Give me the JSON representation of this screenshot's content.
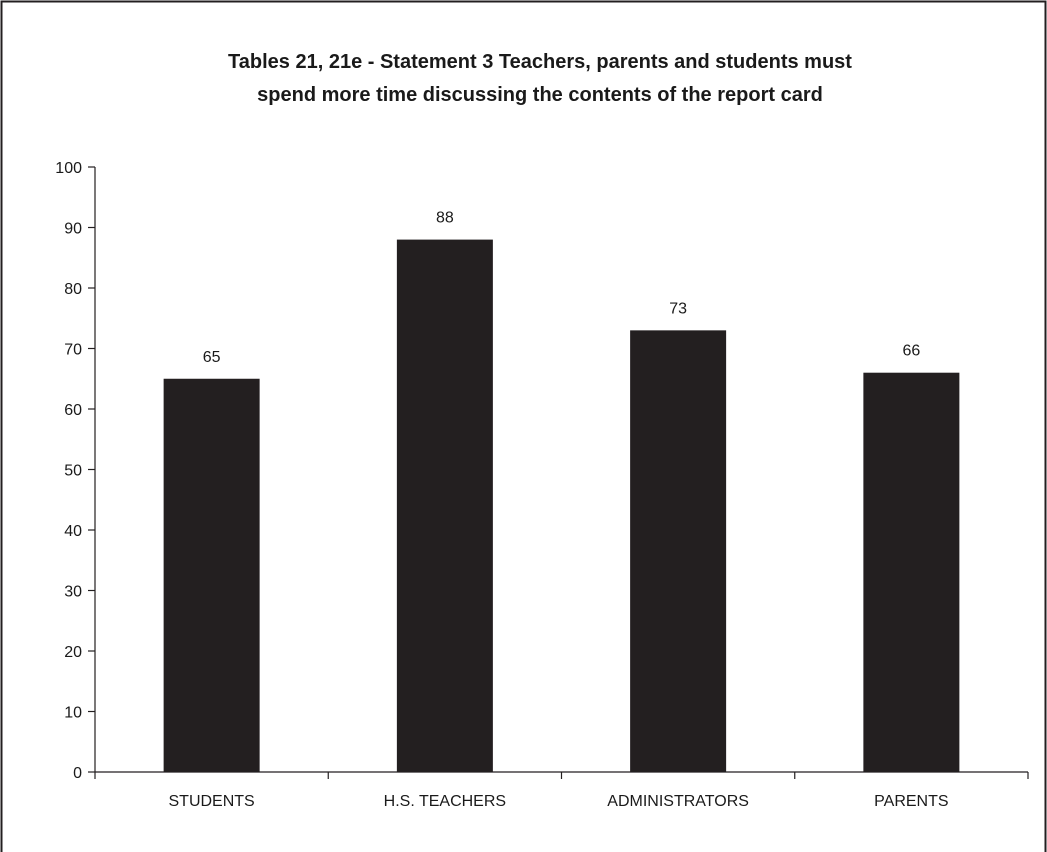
{
  "chart_data": {
    "type": "bar",
    "title": "Tables 21, 21e - Statement 3   Teachers, parents and students must spend more time discussing the contents of the report card",
    "title_lines": [
      "Tables 21, 21e - Statement 3   Teachers, parents and students must",
      "spend more time discussing the contents of the report card"
    ],
    "categories": [
      "STUDENTS",
      "H.S. TEACHERS",
      "ADMINISTRATORS",
      "PARENTS"
    ],
    "values": [
      65,
      88,
      73,
      66
    ],
    "value_labels": [
      "65",
      "88",
      "73",
      "66"
    ],
    "xlabel": "",
    "ylabel": "",
    "ylim": [
      0,
      100
    ],
    "yticks": [
      0,
      10,
      20,
      30,
      40,
      50,
      60,
      70,
      80,
      90,
      100
    ],
    "grid": false,
    "legend": "none",
    "bar_color": "#231f20",
    "axis_color": "#231f20",
    "frame_color": "#231f20"
  }
}
